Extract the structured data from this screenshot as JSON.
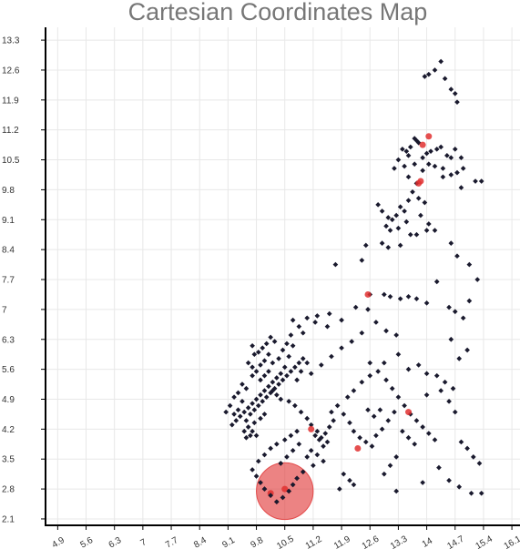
{
  "chart_data": {
    "type": "scatter",
    "title": "Cartesian Coordinates Map",
    "xlabel": "",
    "ylabel": "",
    "x_ticks": [
      "4.9",
      "5.6",
      "6.3",
      "7",
      "7.7",
      "8.4",
      "9.1",
      "9.8",
      "10.5",
      "11.2",
      "11.9",
      "12.6",
      "13.3",
      "14",
      "14.7",
      "15.4",
      "16.1"
    ],
    "y_ticks": [
      "13.3",
      "12.6",
      "11.9",
      "11.2",
      "10.5",
      "9.8",
      "9.1",
      "8.4",
      "7.7",
      "7",
      "6.3",
      "5.6",
      "4.9",
      "4.2",
      "3.5",
      "2.8",
      "2.1"
    ],
    "xlim": [
      4.6,
      16.3
    ],
    "ylim": [
      1.95,
      13.6
    ],
    "grid": true,
    "point_color": "#1a1a2e",
    "highlight_color": "#e03030",
    "points": [
      [
        14.35,
        12.8
      ],
      [
        14.2,
        12.6
      ],
      [
        14.05,
        12.5
      ],
      [
        13.95,
        12.45
      ],
      [
        14.45,
        12.4
      ],
      [
        14.6,
        12.15
      ],
      [
        14.7,
        12.05
      ],
      [
        14.75,
        11.85
      ],
      [
        13.7,
        11.0
      ],
      [
        13.75,
        10.95
      ],
      [
        13.8,
        10.9
      ],
      [
        13.6,
        10.8
      ],
      [
        13.5,
        10.7
      ],
      [
        13.55,
        10.6
      ],
      [
        13.4,
        10.75
      ],
      [
        13.9,
        10.55
      ],
      [
        14.0,
        10.65
      ],
      [
        14.1,
        10.7
      ],
      [
        14.25,
        10.75
      ],
      [
        14.35,
        10.8
      ],
      [
        14.5,
        10.6
      ],
      [
        14.6,
        10.55
      ],
      [
        14.7,
        10.75
      ],
      [
        14.85,
        10.55
      ],
      [
        14.9,
        10.3
      ],
      [
        14.75,
        10.2
      ],
      [
        14.6,
        10.15
      ],
      [
        14.4,
        10.3
      ],
      [
        14.2,
        10.35
      ],
      [
        14.05,
        10.4
      ],
      [
        13.9,
        10.25
      ],
      [
        13.7,
        10.4
      ],
      [
        13.55,
        10.1
      ],
      [
        13.45,
        10.35
      ],
      [
        13.3,
        10.5
      ],
      [
        13.2,
        10.3
      ],
      [
        15.2,
        10.0
      ],
      [
        15.35,
        10.0
      ],
      [
        14.85,
        9.85
      ],
      [
        14.4,
        10.1
      ],
      [
        13.75,
        9.95
      ],
      [
        13.65,
        9.75
      ],
      [
        13.55,
        9.55
      ],
      [
        13.8,
        9.6
      ],
      [
        13.95,
        9.5
      ],
      [
        13.45,
        9.3
      ],
      [
        13.35,
        9.4
      ],
      [
        13.25,
        9.2
      ],
      [
        13.15,
        9.1
      ],
      [
        13.05,
        9.15
      ],
      [
        12.9,
        9.3
      ],
      [
        12.8,
        9.45
      ],
      [
        13.0,
        8.95
      ],
      [
        13.1,
        8.85
      ],
      [
        13.3,
        8.9
      ],
      [
        13.5,
        9.05
      ],
      [
        13.6,
        8.75
      ],
      [
        13.75,
        8.75
      ],
      [
        14.0,
        8.85
      ],
      [
        14.2,
        8.85
      ],
      [
        13.85,
        9.2
      ],
      [
        14.05,
        9.0
      ],
      [
        12.5,
        8.5
      ],
      [
        12.9,
        8.55
      ],
      [
        13.05,
        8.45
      ],
      [
        13.35,
        8.5
      ],
      [
        14.6,
        8.55
      ],
      [
        14.75,
        8.25
      ],
      [
        15.05,
        8.05
      ],
      [
        14.25,
        7.65
      ],
      [
        15.25,
        7.7
      ],
      [
        11.75,
        8.05
      ],
      [
        12.4,
        8.15
      ],
      [
        12.6,
        7.35
      ],
      [
        12.95,
        7.35
      ],
      [
        13.1,
        7.3
      ],
      [
        13.35,
        7.25
      ],
      [
        13.55,
        7.3
      ],
      [
        13.75,
        7.25
      ],
      [
        14.0,
        7.15
      ],
      [
        14.55,
        7.05
      ],
      [
        14.7,
        6.95
      ],
      [
        15.05,
        7.2
      ],
      [
        14.9,
        6.8
      ],
      [
        12.55,
        7.0
      ],
      [
        12.25,
        7.05
      ],
      [
        11.9,
        6.75
      ],
      [
        11.6,
        6.9
      ],
      [
        11.3,
        6.85
      ],
      [
        11.05,
        6.8
      ],
      [
        10.7,
        6.75
      ],
      [
        10.85,
        6.6
      ],
      [
        10.95,
        6.45
      ],
      [
        11.25,
        6.7
      ],
      [
        11.55,
        6.6
      ],
      [
        9.7,
        6.15
      ],
      [
        9.75,
        5.95
      ],
      [
        9.85,
        6.0
      ],
      [
        9.95,
        6.1
      ],
      [
        10.05,
        6.2
      ],
      [
        10.15,
        6.35
      ],
      [
        10.25,
        6.25
      ],
      [
        10.1,
        5.95
      ],
      [
        10.0,
        5.8
      ],
      [
        9.9,
        5.7
      ],
      [
        10.2,
        5.75
      ],
      [
        10.35,
        5.85
      ],
      [
        10.45,
        6.05
      ],
      [
        10.55,
        6.2
      ],
      [
        10.65,
        6.4
      ],
      [
        10.7,
        6.15
      ],
      [
        10.6,
        5.9
      ],
      [
        10.5,
        5.65
      ],
      [
        10.4,
        5.5
      ],
      [
        10.3,
        5.4
      ],
      [
        10.2,
        5.3
      ],
      [
        10.1,
        5.2
      ],
      [
        10.0,
        5.1
      ],
      [
        9.9,
        5.0
      ],
      [
        9.8,
        4.9
      ],
      [
        9.7,
        4.8
      ],
      [
        9.6,
        4.7
      ],
      [
        9.5,
        4.6
      ],
      [
        9.4,
        4.5
      ],
      [
        9.3,
        4.4
      ],
      [
        9.2,
        4.3
      ],
      [
        9.55,
        4.4
      ],
      [
        9.65,
        4.55
      ],
      [
        9.75,
        4.65
      ],
      [
        9.85,
        4.75
      ],
      [
        9.95,
        4.85
      ],
      [
        10.05,
        4.95
      ],
      [
        10.15,
        5.05
      ],
      [
        10.25,
        5.15
      ],
      [
        10.35,
        5.25
      ],
      [
        10.45,
        5.35
      ],
      [
        10.55,
        5.45
      ],
      [
        10.65,
        5.55
      ],
      [
        10.75,
        5.65
      ],
      [
        10.85,
        5.75
      ],
      [
        10.95,
        5.85
      ],
      [
        11.05,
        5.75
      ],
      [
        10.9,
        5.55
      ],
      [
        10.8,
        5.35
      ],
      [
        9.7,
        5.45
      ],
      [
        9.8,
        5.55
      ],
      [
        9.9,
        5.35
      ],
      [
        10.0,
        5.45
      ],
      [
        10.1,
        5.55
      ],
      [
        10.2,
        5.1
      ],
      [
        10.3,
        5.0
      ],
      [
        10.4,
        4.9
      ],
      [
        9.45,
        4.85
      ],
      [
        9.35,
        4.65
      ],
      [
        9.25,
        4.55
      ],
      [
        9.6,
        4.25
      ],
      [
        9.7,
        4.15
      ],
      [
        9.8,
        4.05
      ],
      [
        9.65,
        4.05
      ],
      [
        9.55,
        4.0
      ],
      [
        9.5,
        4.15
      ],
      [
        9.75,
        4.35
      ],
      [
        9.9,
        4.45
      ],
      [
        10.0,
        4.55
      ],
      [
        9.6,
        5.75
      ],
      [
        9.7,
        5.65
      ],
      [
        9.45,
        5.25
      ],
      [
        9.55,
        5.15
      ],
      [
        9.35,
        5.05
      ],
      [
        9.25,
        4.95
      ],
      [
        9.15,
        4.75
      ],
      [
        9.05,
        4.6
      ],
      [
        10.6,
        4.85
      ],
      [
        10.75,
        4.75
      ],
      [
        10.9,
        4.6
      ],
      [
        11.05,
        4.45
      ],
      [
        11.15,
        4.3
      ],
      [
        11.3,
        4.15
      ],
      [
        11.4,
        4.0
      ],
      [
        11.55,
        3.9
      ],
      [
        11.45,
        3.8
      ],
      [
        11.35,
        3.95
      ],
      [
        11.25,
        4.05
      ],
      [
        11.5,
        4.1
      ],
      [
        11.6,
        4.25
      ],
      [
        11.7,
        4.4
      ],
      [
        11.65,
        4.6
      ],
      [
        11.8,
        4.75
      ],
      [
        11.95,
        4.55
      ],
      [
        12.1,
        4.35
      ],
      [
        12.2,
        4.15
      ],
      [
        12.35,
        4.0
      ],
      [
        12.5,
        3.9
      ],
      [
        12.65,
        3.8
      ],
      [
        11.15,
        3.7
      ],
      [
        11.05,
        3.55
      ],
      [
        11.3,
        3.6
      ],
      [
        11.45,
        3.45
      ],
      [
        11.2,
        3.35
      ],
      [
        10.95,
        3.2
      ],
      [
        10.8,
        3.05
      ],
      [
        10.7,
        2.9
      ],
      [
        10.6,
        2.75
      ],
      [
        10.45,
        2.6
      ],
      [
        10.3,
        2.5
      ],
      [
        10.15,
        2.65
      ],
      [
        10.0,
        2.8
      ],
      [
        9.9,
        2.95
      ],
      [
        9.8,
        3.1
      ],
      [
        9.7,
        3.25
      ],
      [
        9.85,
        3.45
      ],
      [
        10.0,
        3.6
      ],
      [
        10.15,
        3.75
      ],
      [
        10.3,
        3.85
      ],
      [
        10.5,
        3.95
      ],
      [
        10.65,
        4.05
      ],
      [
        10.8,
        4.15
      ],
      [
        10.85,
        3.85
      ],
      [
        10.7,
        3.7
      ],
      [
        10.55,
        3.55
      ],
      [
        10.4,
        3.4
      ],
      [
        12.05,
        4.95
      ],
      [
        12.2,
        5.1
      ],
      [
        12.4,
        5.3
      ],
      [
        12.6,
        5.45
      ],
      [
        12.8,
        5.55
      ],
      [
        13.0,
        5.35
      ],
      [
        13.15,
        5.15
      ],
      [
        13.3,
        4.95
      ],
      [
        13.45,
        4.75
      ],
      [
        13.6,
        4.55
      ],
      [
        13.75,
        4.4
      ],
      [
        13.9,
        4.25
      ],
      [
        14.05,
        4.1
      ],
      [
        14.2,
        3.95
      ],
      [
        13.2,
        4.6
      ],
      [
        13.05,
        4.4
      ],
      [
        12.9,
        4.2
      ],
      [
        12.75,
        4.05
      ],
      [
        13.4,
        4.15
      ],
      [
        13.55,
        4.0
      ],
      [
        13.7,
        3.85
      ],
      [
        14.0,
        5.0
      ],
      [
        14.35,
        5.1
      ],
      [
        14.55,
        4.85
      ],
      [
        14.7,
        4.6
      ],
      [
        14.85,
        3.9
      ],
      [
        15.0,
        3.75
      ],
      [
        15.15,
        3.55
      ],
      [
        15.3,
        3.4
      ],
      [
        13.25,
        3.55
      ],
      [
        13.1,
        3.35
      ],
      [
        12.95,
        3.15
      ],
      [
        14.55,
        3.0
      ],
      [
        14.8,
        2.85
      ],
      [
        15.1,
        2.7
      ],
      [
        13.9,
        2.95
      ],
      [
        14.3,
        3.3
      ],
      [
        12.1,
        3.0
      ],
      [
        11.95,
        3.15
      ],
      [
        12.2,
        2.9
      ],
      [
        11.85,
        2.8
      ],
      [
        13.25,
        2.75
      ],
      [
        15.35,
        2.7
      ],
      [
        12.55,
        4.65
      ],
      [
        12.7,
        4.5
      ],
      [
        12.85,
        4.65
      ],
      [
        12.6,
        5.75
      ],
      [
        12.95,
        5.75
      ],
      [
        13.3,
        5.95
      ],
      [
        13.55,
        5.6
      ],
      [
        13.8,
        5.7
      ],
      [
        14.0,
        5.5
      ],
      [
        14.25,
        5.45
      ],
      [
        14.45,
        5.3
      ],
      [
        14.65,
        5.15
      ],
      [
        14.8,
        5.85
      ],
      [
        15.0,
        6.05
      ],
      [
        14.6,
        6.3
      ],
      [
        13.25,
        6.4
      ],
      [
        13.0,
        6.5
      ],
      [
        12.75,
        6.7
      ],
      [
        12.4,
        6.45
      ],
      [
        12.15,
        6.25
      ],
      [
        11.9,
        6.1
      ],
      [
        11.65,
        5.9
      ],
      [
        11.4,
        5.7
      ],
      [
        11.15,
        5.5
      ]
    ],
    "highlights": [
      [
        14.05,
        11.05
      ],
      [
        13.9,
        10.85
      ],
      [
        13.8,
        9.95
      ],
      [
        13.85,
        10.0
      ],
      [
        12.55,
        7.35
      ],
      [
        13.55,
        4.6
      ],
      [
        11.15,
        4.2
      ],
      [
        12.3,
        3.75
      ],
      [
        10.5,
        2.8
      ],
      [
        10.15,
        2.7
      ]
    ],
    "highlight_circle": {
      "x": 10.5,
      "y": 2.75,
      "r": 0.7
    }
  }
}
